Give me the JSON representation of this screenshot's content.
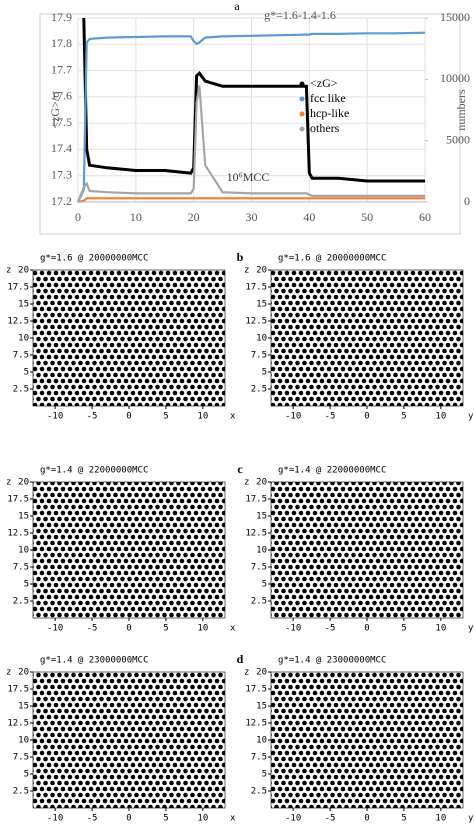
{
  "chart_data": {
    "type": "line",
    "label": "a",
    "annotation": "g*=1.6-1.4-1.6",
    "annotation2": "10⁶MCC",
    "ylabel": "<zG>/σ",
    "y2label": "numbers",
    "x": [
      0,
      1,
      1.5,
      2,
      5,
      10,
      15,
      19.5,
      20,
      20.5,
      21,
      22,
      25,
      30,
      35,
      39.5,
      40,
      40.5,
      45,
      50,
      55,
      60
    ],
    "xlim": [
      0,
      60
    ],
    "xticks": [
      0,
      10,
      20,
      30,
      40,
      50,
      60
    ],
    "ylim": [
      17.2,
      17.9
    ],
    "yticks": [
      17.2,
      17.3,
      17.4,
      17.5,
      17.6,
      17.7,
      17.8,
      17.9
    ],
    "y2lim": [
      0,
      15000
    ],
    "y2ticks": [
      0,
      5000,
      10000,
      15000
    ],
    "grid": true,
    "series": [
      {
        "name": "<zG>",
        "color": "#000000",
        "values": [
          null,
          17.9,
          17.4,
          17.34,
          17.33,
          17.32,
          17.32,
          17.31,
          17.33,
          17.68,
          17.69,
          17.66,
          17.64,
          17.64,
          17.64,
          17.64,
          17.31,
          17.29,
          17.29,
          17.28,
          17.28,
          17.28
        ]
      },
      {
        "name": "fcc like",
        "color": "#5b9bd5",
        "axis": "y2",
        "values": [
          0,
          1000,
          13000,
          13300,
          13400,
          13450,
          13500,
          13500,
          13100,
          12900,
          13000,
          13400,
          13500,
          13550,
          13600,
          13650,
          13650,
          13700,
          13700,
          13750,
          13750,
          13800
        ]
      },
      {
        "name": "hcp-like",
        "color": "#ed7d31",
        "axis": "y2",
        "values": [
          0,
          100,
          300,
          300,
          300,
          300,
          300,
          300,
          300,
          300,
          300,
          300,
          300,
          300,
          300,
          300,
          300,
          300,
          300,
          300,
          300,
          300
        ]
      },
      {
        "name": "others",
        "color": "#a5a5a5",
        "axis": "y2",
        "values": [
          0,
          1200,
          1500,
          900,
          800,
          700,
          700,
          700,
          1100,
          8100,
          9500,
          3000,
          800,
          700,
          700,
          700,
          600,
          500,
          500,
          500,
          500,
          500
        ]
      }
    ]
  },
  "snapshots": {
    "axes": {
      "xlim": [
        -13,
        13
      ],
      "ylim": [
        0,
        20
      ],
      "xticks": [
        -10,
        -5,
        0,
        5,
        10
      ],
      "yticks": [
        2.5,
        5,
        7.5,
        10,
        12.5,
        15,
        17.5,
        20
      ],
      "ylabel": "z"
    },
    "rows": [
      {
        "label": "b",
        "panels": [
          {
            "title": "g*=1.6 @ 20000000MCC",
            "xlabel": "x"
          },
          {
            "title": "g*=1.6 @ 20000000MCC",
            "xlabel": "y"
          }
        ]
      },
      {
        "label": "c",
        "panels": [
          {
            "title": "g*=1.4 @ 22000000MCC",
            "xlabel": "x"
          },
          {
            "title": "g*=1.4 @ 22000000MCC",
            "xlabel": "y"
          }
        ]
      },
      {
        "label": "d",
        "panels": [
          {
            "title": "g*=1.4 @ 23000000MCC",
            "xlabel": "x"
          },
          {
            "title": "g*=1.4 @ 23000000MCC",
            "xlabel": "y"
          }
        ]
      }
    ]
  }
}
